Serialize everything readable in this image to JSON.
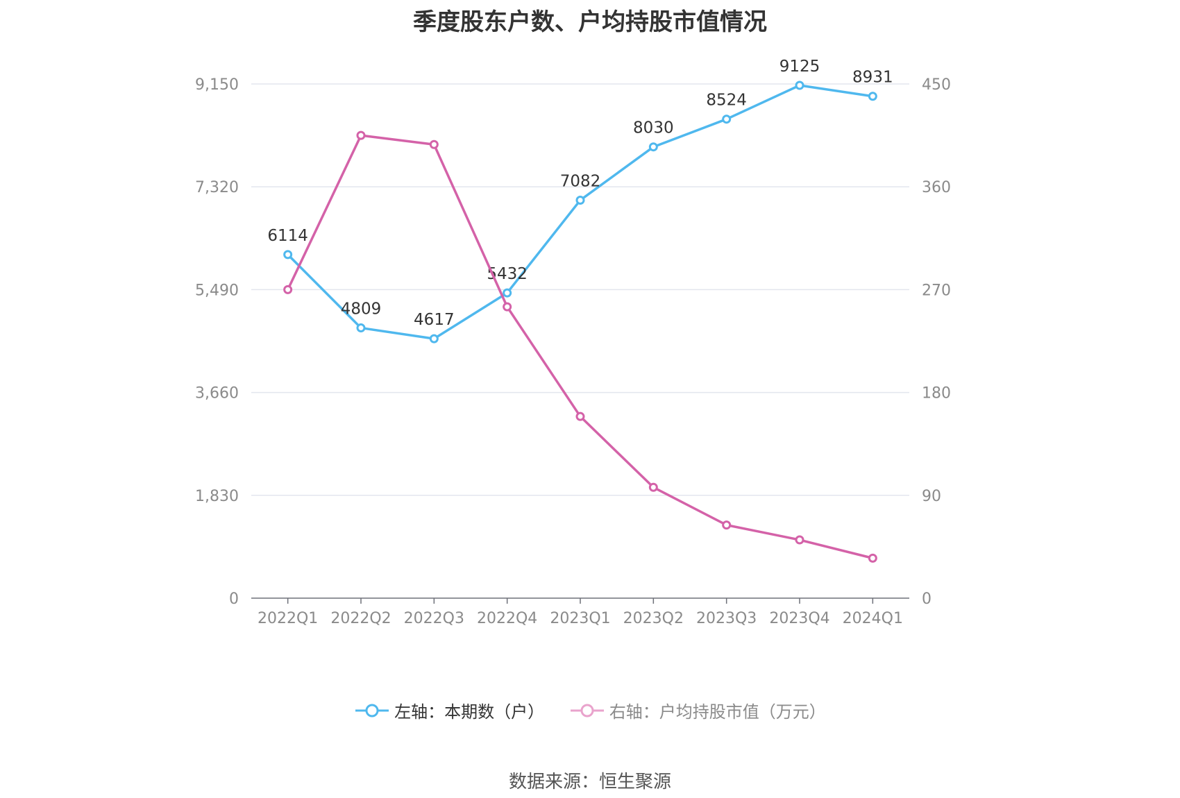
{
  "chart_data": {
    "type": "line",
    "title": "季度股东户数、户均持股市值情况",
    "categories": [
      "2022Q1",
      "2022Q2",
      "2022Q3",
      "2022Q4",
      "2023Q1",
      "2023Q2",
      "2023Q3",
      "2023Q4",
      "2024Q1"
    ],
    "left_axis": {
      "ylim": [
        0,
        9150
      ],
      "ticks": [
        "0",
        "1,830",
        "3,660",
        "5,490",
        "7,320",
        "9,150"
      ]
    },
    "right_axis": {
      "ylim": [
        0,
        450
      ],
      "ticks": [
        "0",
        "90",
        "180",
        "270",
        "360",
        "450"
      ]
    },
    "series": [
      {
        "name": "左轴：本期数（户）",
        "axis": "left",
        "color": "#4fb8ee",
        "values": [
          6114,
          4809,
          4617,
          5432,
          7082,
          8030,
          8524,
          9125,
          8931
        ],
        "show_labels": true
      },
      {
        "name": "右轴：户均持股市值（万元）",
        "axis": "right",
        "color": "#d462a8",
        "values": [
          270,
          405,
          397,
          255,
          159,
          97,
          64,
          51,
          35
        ],
        "show_labels": false
      }
    ],
    "grid": true,
    "legend_position": "bottom"
  },
  "source": "数据来源：恒生聚源"
}
